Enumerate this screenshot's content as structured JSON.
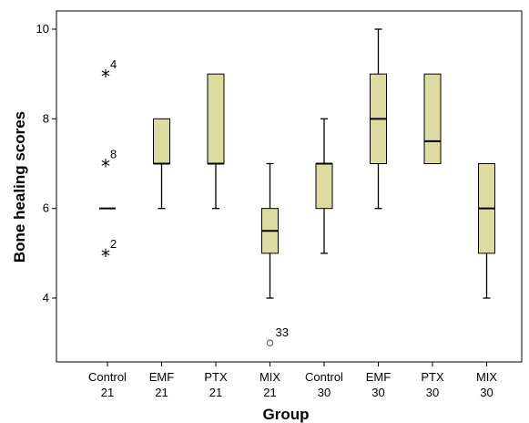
{
  "chart_data": {
    "type": "box",
    "title": "",
    "xlabel": "Group",
    "ylabel": "Bone healing scores",
    "ylim": [
      2.7,
      10.4
    ],
    "yticks": [
      4,
      6,
      8,
      10
    ],
    "grid": false,
    "legend": "none",
    "colors": {
      "box_fill": "#dedba0",
      "line": "#000000",
      "frame": "#000000"
    },
    "categories": [
      {
        "line1": "Control",
        "line2": "21"
      },
      {
        "line1": "EMF",
        "line2": "21"
      },
      {
        "line1": "PTX",
        "line2": "21"
      },
      {
        "line1": "MIX",
        "line2": "21"
      },
      {
        "line1": "Control",
        "line2": "30"
      },
      {
        "line1": "EMF",
        "line2": "30"
      },
      {
        "line1": "PTX",
        "line2": "30"
      },
      {
        "line1": "MIX",
        "line2": "30"
      }
    ],
    "boxes": [
      {
        "min": 6,
        "q1": 6,
        "median": 6,
        "q3": 6,
        "max": 6
      },
      {
        "min": 6,
        "q1": 7,
        "median": 7,
        "q3": 8,
        "max": 8
      },
      {
        "min": 6,
        "q1": 7,
        "median": 7,
        "q3": 9,
        "max": 9
      },
      {
        "min": 4,
        "q1": 5,
        "median": 5.5,
        "q3": 6,
        "max": 7
      },
      {
        "min": 5,
        "q1": 6,
        "median": 7,
        "q3": 7,
        "max": 8
      },
      {
        "min": 6,
        "q1": 7,
        "median": 8,
        "q3": 9,
        "max": 10
      },
      {
        "min": 7,
        "q1": 7,
        "median": 7.5,
        "q3": 9,
        "max": 9
      },
      {
        "min": 4,
        "q1": 5,
        "median": 6,
        "q3": 7,
        "max": 7
      }
    ],
    "outliers": [
      {
        "group": 0,
        "value": 9,
        "marker": "star",
        "label": "4"
      },
      {
        "group": 0,
        "value": 7,
        "marker": "star",
        "label": "8"
      },
      {
        "group": 0,
        "value": 5,
        "marker": "star",
        "label": "2"
      },
      {
        "group": 3,
        "value": 3,
        "marker": "circle",
        "label": "33"
      }
    ]
  }
}
